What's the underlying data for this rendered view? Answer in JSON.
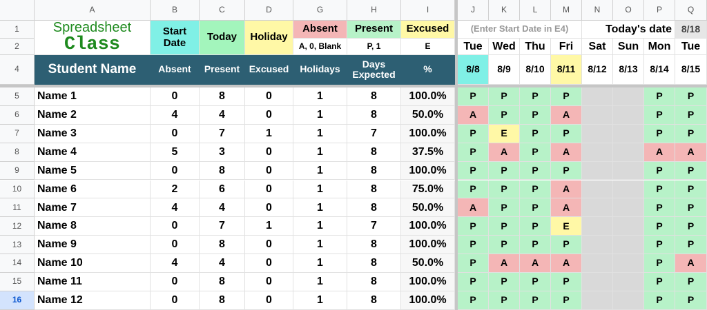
{
  "column_headers": [
    "A",
    "B",
    "C",
    "D",
    "G",
    "H",
    "I",
    "J",
    "K",
    "L",
    "M",
    "N",
    "O",
    "P",
    "Q"
  ],
  "row_numbers": [
    "1",
    "2",
    "4",
    "5",
    "6",
    "7",
    "8",
    "9",
    "10",
    "11",
    "12",
    "13",
    "14",
    "15",
    "16"
  ],
  "title": {
    "line1": "Spreadsheet",
    "line2": "Class"
  },
  "legend": {
    "labels": [
      "Start Date",
      "Today",
      "Holiday",
      "Absent",
      "Present",
      "Excused"
    ],
    "codes": [
      "A, 0, Blank",
      "P, 1",
      "E"
    ]
  },
  "note": "(Enter Start Date in E4)",
  "today_label": "Today's date",
  "today_value": "8/18",
  "table_headers": [
    "Student Name",
    "Absent",
    "Present",
    "Excused",
    "Holidays",
    "Days Expected",
    "%"
  ],
  "days": [
    "Tue",
    "Wed",
    "Thu",
    "Fri",
    "Sat",
    "Sun",
    "Mon",
    "Tue"
  ],
  "dates": [
    "8/8",
    "8/9",
    "8/10",
    "8/11",
    "8/12",
    "8/13",
    "8/14",
    "8/15"
  ],
  "students": [
    {
      "name": "Name 1",
      "stats": [
        "0",
        "8",
        "0",
        "1",
        "8",
        "100.0%"
      ],
      "attendance": [
        "P",
        "P",
        "P",
        "P",
        null,
        null,
        "P",
        "P"
      ]
    },
    {
      "name": "Name 2",
      "stats": [
        "4",
        "4",
        "0",
        "1",
        "8",
        "50.0%"
      ],
      "attendance": [
        "A",
        "P",
        "P",
        "A",
        null,
        null,
        "P",
        "P"
      ]
    },
    {
      "name": "Name 3",
      "stats": [
        "0",
        "7",
        "1",
        "1",
        "7",
        "100.0%"
      ],
      "attendance": [
        "P",
        "E",
        "P",
        "P",
        null,
        null,
        "P",
        "P"
      ]
    },
    {
      "name": "Name 4",
      "stats": [
        "5",
        "3",
        "0",
        "1",
        "8",
        "37.5%"
      ],
      "attendance": [
        "P",
        "A",
        "P",
        "A",
        null,
        null,
        "A",
        "A"
      ]
    },
    {
      "name": "Name 5",
      "stats": [
        "0",
        "8",
        "0",
        "1",
        "8",
        "100.0%"
      ],
      "attendance": [
        "P",
        "P",
        "P",
        "P",
        null,
        null,
        "P",
        "P"
      ]
    },
    {
      "name": "Name 6",
      "stats": [
        "2",
        "6",
        "0",
        "1",
        "8",
        "75.0%"
      ],
      "attendance": [
        "P",
        "P",
        "P",
        "A",
        null,
        null,
        "P",
        "P"
      ]
    },
    {
      "name": "Name 7",
      "stats": [
        "4",
        "4",
        "0",
        "1",
        "8",
        "50.0%"
      ],
      "attendance": [
        "A",
        "P",
        "P",
        "A",
        null,
        null,
        "P",
        "P"
      ]
    },
    {
      "name": "Name 8",
      "stats": [
        "0",
        "7",
        "1",
        "1",
        "7",
        "100.0%"
      ],
      "attendance": [
        "P",
        "P",
        "P",
        "E",
        null,
        null,
        "P",
        "P"
      ]
    },
    {
      "name": "Name 9",
      "stats": [
        "0",
        "8",
        "0",
        "1",
        "8",
        "100.0%"
      ],
      "attendance": [
        "P",
        "P",
        "P",
        "P",
        null,
        null,
        "P",
        "P"
      ]
    },
    {
      "name": "Name 10",
      "stats": [
        "4",
        "4",
        "0",
        "1",
        "8",
        "50.0%"
      ],
      "attendance": [
        "P",
        "A",
        "A",
        "A",
        null,
        null,
        "P",
        "A"
      ]
    },
    {
      "name": "Name 11",
      "stats": [
        "0",
        "8",
        "0",
        "1",
        "8",
        "100.0%"
      ],
      "attendance": [
        "P",
        "P",
        "P",
        "P",
        null,
        null,
        "P",
        "P"
      ]
    },
    {
      "name": "Name 12",
      "stats": [
        "0",
        "8",
        "0",
        "1",
        "8",
        "100.0%"
      ],
      "attendance": [
        "P",
        "P",
        "P",
        "P",
        null,
        null,
        "P",
        "P"
      ]
    }
  ]
}
